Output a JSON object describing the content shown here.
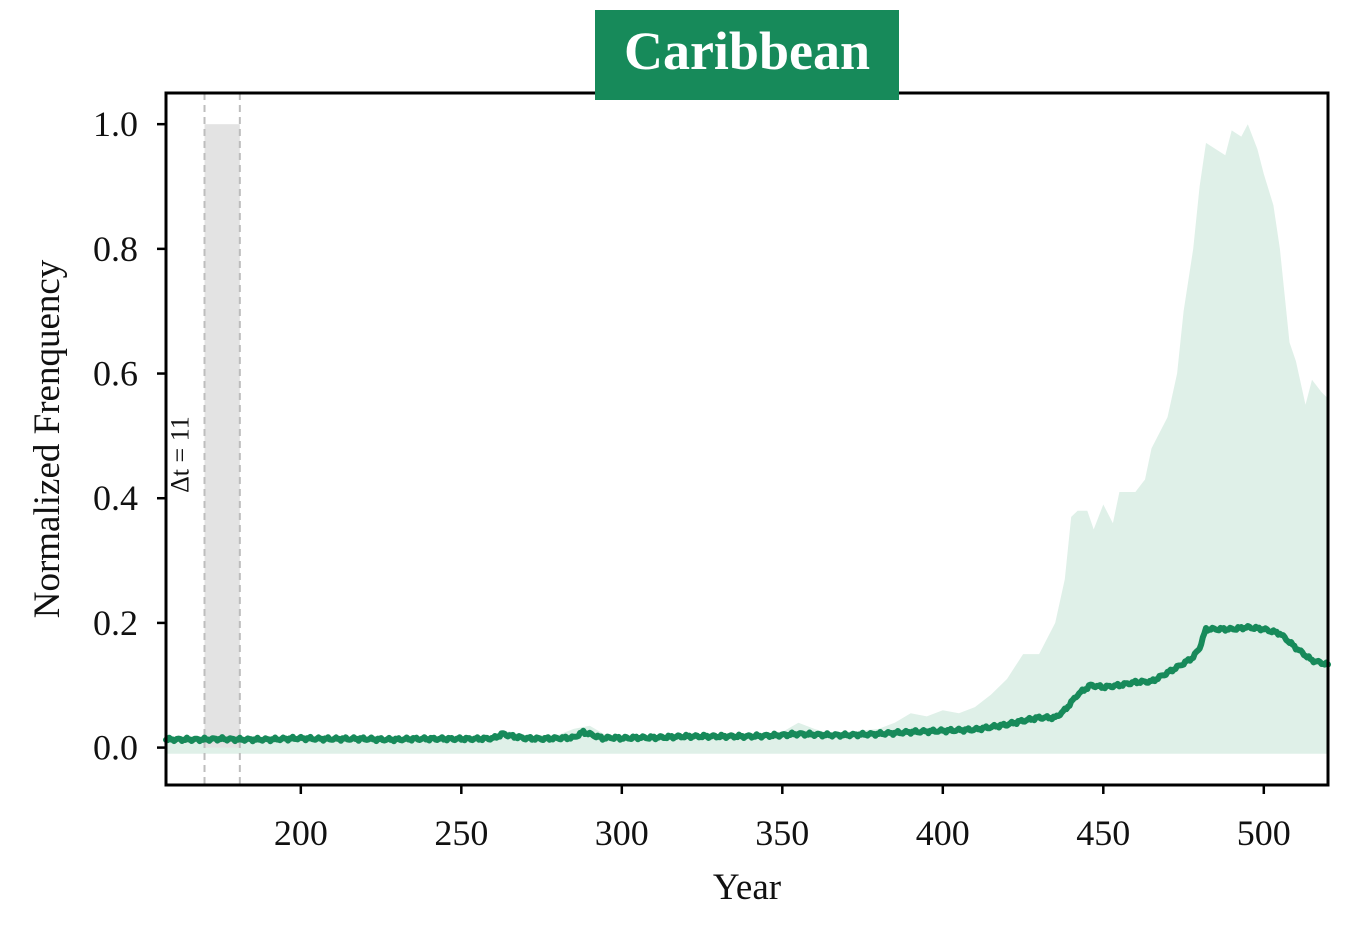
{
  "chart_data": {
    "type": "area",
    "title": "Caribbean",
    "xlabel": "Year",
    "ylabel": "Normalized Frenquency",
    "xlim": [
      158,
      520
    ],
    "ylim": [
      -0.06,
      1.05
    ],
    "xticks": [
      200,
      250,
      300,
      350,
      400,
      450,
      500
    ],
    "xtick_labels": [
      "200",
      "250",
      "300",
      "350",
      "400",
      "450",
      "500"
    ],
    "yticks": [
      0.0,
      0.2,
      0.4,
      0.6,
      0.8,
      1.0
    ],
    "ytick_labels": [
      "0.0",
      "0.2",
      "0.4",
      "0.6",
      "0.8",
      "1.0"
    ],
    "grid": false,
    "colors": {
      "line": "#178a5a",
      "band": "#dff0e8",
      "title_bg": "#178a5a",
      "highlight": "#e3e3e3",
      "dashed": "#bdbdbd"
    },
    "highlight": {
      "x_start": 170,
      "x_end": 181,
      "y_top": 1.0,
      "label": "Δt = 11"
    },
    "series": [
      {
        "role": "mean",
        "x": [
          158,
          165,
          170,
          175,
          180,
          185,
          190,
          195,
          200,
          205,
          210,
          215,
          220,
          225,
          230,
          235,
          240,
          245,
          250,
          255,
          260,
          263,
          266,
          270,
          275,
          280,
          285,
          288,
          291,
          294,
          297,
          300,
          305,
          310,
          320,
          330,
          340,
          350,
          355,
          360,
          365,
          370,
          380,
          390,
          395,
          400,
          405,
          410,
          415,
          420,
          425,
          430,
          435,
          438,
          442,
          446,
          450,
          455,
          460,
          465,
          470,
          475,
          478,
          480,
          482,
          485,
          490,
          495,
          500,
          505,
          510,
          515,
          520
        ],
        "values": [
          0.013,
          0.013,
          0.013,
          0.014,
          0.013,
          0.013,
          0.013,
          0.014,
          0.015,
          0.014,
          0.014,
          0.014,
          0.014,
          0.013,
          0.013,
          0.014,
          0.014,
          0.014,
          0.014,
          0.014,
          0.015,
          0.022,
          0.018,
          0.015,
          0.014,
          0.015,
          0.016,
          0.025,
          0.02,
          0.015,
          0.016,
          0.015,
          0.016,
          0.016,
          0.018,
          0.018,
          0.018,
          0.02,
          0.022,
          0.021,
          0.02,
          0.02,
          0.022,
          0.025,
          0.026,
          0.027,
          0.028,
          0.029,
          0.033,
          0.037,
          0.043,
          0.048,
          0.048,
          0.06,
          0.085,
          0.1,
          0.097,
          0.1,
          0.105,
          0.106,
          0.12,
          0.135,
          0.145,
          0.16,
          0.19,
          0.19,
          0.19,
          0.193,
          0.19,
          0.183,
          0.16,
          0.14,
          0.133
        ]
      },
      {
        "role": "band_upper",
        "x": [
          158,
          170,
          180,
          200,
          250,
          260,
          265,
          270,
          280,
          285,
          290,
          295,
          300,
          340,
          350,
          355,
          360,
          365,
          370,
          380,
          385,
          390,
          395,
          400,
          405,
          410,
          415,
          420,
          425,
          430,
          435,
          438,
          440,
          442,
          445,
          447,
          450,
          453,
          455,
          460,
          463,
          465,
          470,
          473,
          475,
          478,
          480,
          482,
          485,
          488,
          490,
          493,
          495,
          498,
          500,
          503,
          505,
          508,
          510,
          513,
          515,
          518,
          520
        ],
        "values": [
          0.018,
          0.018,
          0.016,
          0.016,
          0.016,
          0.02,
          0.026,
          0.02,
          0.02,
          0.03,
          0.035,
          0.02,
          0.018,
          0.018,
          0.025,
          0.04,
          0.03,
          0.022,
          0.025,
          0.03,
          0.04,
          0.055,
          0.05,
          0.06,
          0.055,
          0.065,
          0.085,
          0.11,
          0.15,
          0.15,
          0.2,
          0.27,
          0.37,
          0.38,
          0.38,
          0.35,
          0.39,
          0.36,
          0.41,
          0.41,
          0.43,
          0.48,
          0.53,
          0.6,
          0.7,
          0.8,
          0.9,
          0.97,
          0.96,
          0.95,
          0.99,
          0.98,
          1.0,
          0.96,
          0.92,
          0.87,
          0.8,
          0.65,
          0.62,
          0.55,
          0.59,
          0.57,
          0.56
        ]
      },
      {
        "role": "band_lower",
        "x": [
          158,
          520
        ],
        "values": [
          -0.01,
          -0.01
        ]
      }
    ]
  }
}
